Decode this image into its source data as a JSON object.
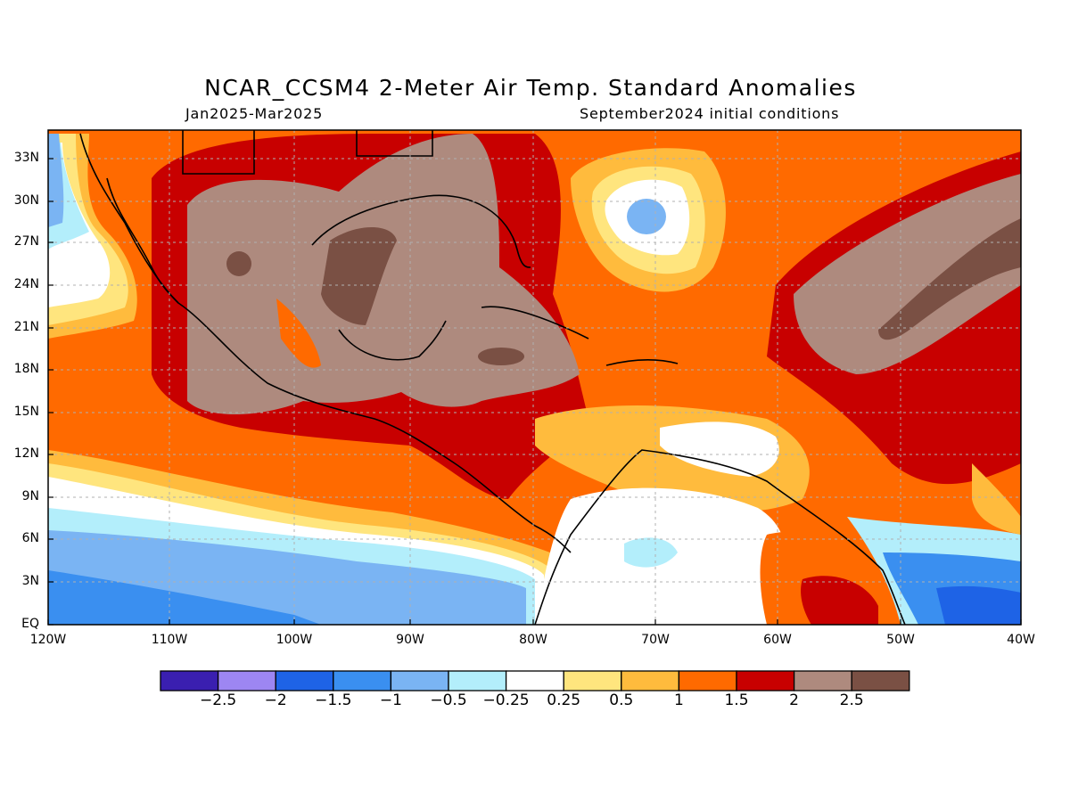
{
  "title": "NCAR_CCSM4 2-Meter Air Temp. Standard Anomalies",
  "subtitle_left": "Jan2025-Mar2025",
  "subtitle_right": "September2024 initial conditions",
  "lat_labels": [
    "33N",
    "30N",
    "27N",
    "24N",
    "21N",
    "18N",
    "15N",
    "12N",
    "9N",
    "6N",
    "3N",
    "EQ"
  ],
  "lon_labels": [
    "120W",
    "110W",
    "100W",
    "90W",
    "80W",
    "70W",
    "60W",
    "50W",
    "40W"
  ],
  "colorbar": {
    "labels": [
      "-2.5",
      "-2",
      "-1.5",
      "-1",
      "-0.5",
      "-0.25",
      "0.25",
      "0.5",
      "1",
      "1.5",
      "2",
      "2.5"
    ],
    "colors": [
      "#3a1fb0",
      "#9d86f2",
      "#1e63e6",
      "#3a8ff0",
      "#7ab4f3",
      "#b3eefb",
      "#ffffff",
      "#ffe57e",
      "#ffbb3d",
      "#ff6a00",
      "#c80000",
      "#ae8a7e",
      "#7a5044"
    ]
  },
  "colors": {
    "ocean_orange": "#ff6a00",
    "land_outline": "#000000",
    "grid": "#b0b0b0"
  }
}
